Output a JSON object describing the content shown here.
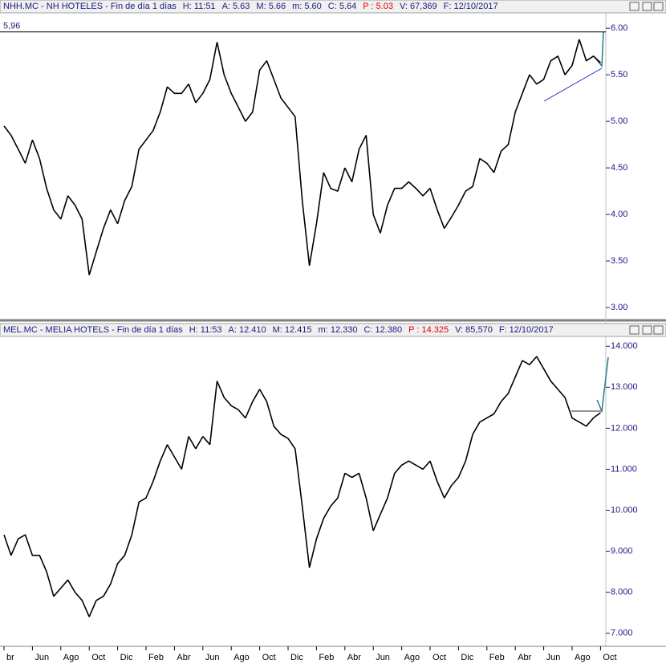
{
  "chart_data": [
    {
      "type": "line",
      "title": "NHH.MC - NH HOTELES - Fin de día 1 días",
      "info": [
        {
          "text": "H: 11:51",
          "color": "#1a1a80"
        },
        {
          "text": "A: 5.63",
          "color": "#1a1a80"
        },
        {
          "text": "M: 5.66",
          "color": "#1a1a80"
        },
        {
          "text": "m: 5.60",
          "color": "#1a1a80"
        },
        {
          "text": "C: 5.64",
          "color": "#1a1a80"
        },
        {
          "text": "P : 5.03",
          "color": "#e00000"
        },
        {
          "text": "V: 67,369",
          "color": "#1a1a80"
        },
        {
          "text": "F: 12/10/2017",
          "color": "#1a1a80"
        }
      ],
      "color": "#000000",
      "values": [
        4.95,
        4.85,
        4.7,
        4.55,
        4.8,
        4.6,
        4.28,
        4.05,
        3.95,
        4.2,
        4.1,
        3.95,
        3.35,
        3.6,
        3.85,
        4.05,
        3.9,
        4.15,
        4.3,
        4.7,
        4.8,
        4.9,
        5.1,
        5.37,
        5.3,
        5.3,
        5.4,
        5.2,
        5.3,
        5.45,
        5.85,
        5.5,
        5.3,
        5.15,
        5.0,
        5.1,
        5.55,
        5.65,
        5.45,
        5.25,
        5.15,
        5.05,
        4.15,
        3.45,
        3.9,
        4.45,
        4.28,
        4.25,
        4.5,
        4.35,
        4.7,
        4.85,
        4.0,
        3.8,
        4.1,
        4.28,
        4.28,
        4.35,
        4.28,
        4.2,
        4.28,
        4.05,
        3.85,
        3.97,
        4.1,
        4.25,
        4.3,
        4.6,
        4.55,
        4.45,
        4.68,
        4.75,
        5.1,
        5.3,
        5.5,
        5.4,
        5.45,
        5.65,
        5.7,
        5.5,
        5.6,
        5.88,
        5.65,
        5.7,
        5.63
      ],
      "ylim": [
        2.88,
        6.165
      ],
      "yticks": [
        {
          "value": 3,
          "label": "3.00"
        },
        {
          "value": 3.5,
          "label": "3.50"
        },
        {
          "value": 4,
          "label": "4.00"
        },
        {
          "value": 4.5,
          "label": "4.50"
        },
        {
          "value": 5,
          "label": "5.00"
        },
        {
          "value": 5.5,
          "label": "5.50"
        },
        {
          "value": 6,
          "label": "6.00"
        }
      ],
      "reference_line": {
        "value": 5.96,
        "label": "5,96",
        "color": "#1a1a80"
      }
    },
    {
      "type": "line",
      "title": "MEL.MC - MELIA HOTELS - Fin de día 1 días",
      "info": [
        {
          "text": "H: 11:53",
          "color": "#1a1a80"
        },
        {
          "text": "A: 12.410",
          "color": "#1a1a80"
        },
        {
          "text": "M: 12.415",
          "color": "#1a1a80"
        },
        {
          "text": "m: 12.330",
          "color": "#1a1a80"
        },
        {
          "text": "C: 12.380",
          "color": "#1a1a80"
        },
        {
          "text": "P : 14.325",
          "color": "#e00000"
        },
        {
          "text": "V: 85,570",
          "color": "#1a1a80"
        },
        {
          "text": "F: 12/10/2017",
          "color": "#1a1a80"
        }
      ],
      "color": "#000000",
      "categories": [
        "br",
        null,
        null,
        null,
        "Jun",
        null,
        null,
        null,
        "Ago",
        null,
        null,
        null,
        "Oct",
        null,
        null,
        null,
        "Dic",
        null,
        null,
        null,
        "Feb",
        null,
        null,
        null,
        "Abr",
        null,
        null,
        null,
        "Jun",
        null,
        null,
        null,
        "Ago",
        null,
        null,
        null,
        "Oct",
        null,
        null,
        null,
        "Dic",
        null,
        null,
        null,
        "Feb",
        null,
        null,
        null,
        "Abr",
        null,
        null,
        null,
        "Jun",
        null,
        null,
        null,
        "Ago",
        null,
        null,
        null,
        "Oct",
        null,
        null,
        null,
        "Dic",
        null,
        null,
        null,
        "Feb",
        null,
        null,
        null,
        "Abr",
        null,
        null,
        null,
        "Jun",
        null,
        null,
        null,
        "Ago",
        null,
        null,
        null,
        "Oct"
      ],
      "values": [
        9.4,
        8.9,
        9.3,
        9.4,
        8.9,
        8.9,
        8.5,
        7.9,
        8.1,
        8.3,
        8.0,
        7.8,
        7.4,
        7.8,
        7.9,
        8.2,
        8.7,
        8.9,
        9.4,
        10.2,
        10.3,
        10.7,
        11.2,
        11.6,
        11.3,
        11.0,
        11.8,
        11.5,
        11.8,
        11.6,
        13.15,
        12.75,
        12.55,
        12.45,
        12.25,
        12.65,
        12.95,
        12.65,
        12.05,
        11.85,
        11.75,
        11.5,
        10.1,
        8.6,
        9.3,
        9.8,
        10.1,
        10.3,
        10.9,
        10.8,
        10.9,
        10.3,
        9.5,
        9.9,
        10.3,
        10.9,
        11.1,
        11.2,
        11.1,
        11.0,
        11.2,
        10.7,
        10.3,
        10.6,
        10.8,
        11.2,
        11.85,
        12.15,
        12.25,
        12.35,
        12.65,
        12.85,
        13.25,
        13.65,
        13.55,
        13.75,
        13.45,
        13.15,
        12.95,
        12.75,
        12.25,
        12.15,
        12.05,
        12.25,
        12.38
      ],
      "ylim": [
        6.68,
        14.24
      ],
      "yticks": [
        {
          "value": 7,
          "label": "7.000"
        },
        {
          "value": 8,
          "label": "8.000"
        },
        {
          "value": 9,
          "label": "9.000"
        },
        {
          "value": 10,
          "label": "10.000"
        },
        {
          "value": 11,
          "label": "11.000"
        },
        {
          "value": 12,
          "label": "12.000"
        },
        {
          "value": 13,
          "label": "13.000"
        },
        {
          "value": 14,
          "label": "14.000"
        }
      ]
    }
  ]
}
